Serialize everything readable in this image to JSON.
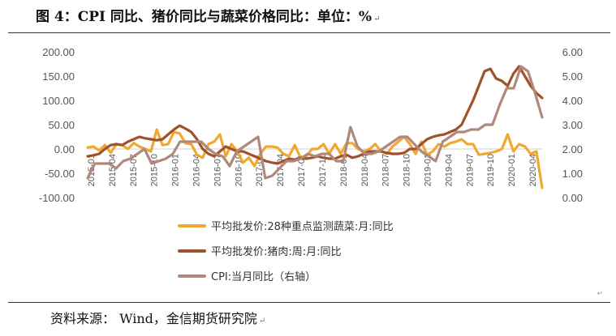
{
  "header": {
    "title": "图 4：CPI 同比、猪价同比与蔬菜价格同比：单位：%",
    "title_mark": "↵"
  },
  "footer": {
    "source": "资料来源：  Wind，金信期货研究院",
    "source_mark": "↵",
    "para_mark": "↵"
  },
  "chart_data": {
    "type": "line",
    "title": "",
    "xlabel": "",
    "ylabel": "",
    "x_tick_labels": [
      "2015-01",
      "2015-04",
      "2015-07",
      "2015-10",
      "2016-01",
      "2016-04",
      "2016-07",
      "2016-10",
      "2017-01",
      "2017-04",
      "2017-07",
      "2017-10",
      "2018-01",
      "2018-04",
      "2018-07",
      "2018-10",
      "2019-01",
      "2019-04",
      "2019-07",
      "2019-10",
      "2020-01",
      "2020-04"
    ],
    "y_left": {
      "ylim": [
        -100,
        200
      ],
      "ticks": [
        "200.00",
        "150.00",
        "100.00",
        "50.00",
        "0.00",
        "-50.00",
        "-100.00"
      ]
    },
    "y_right": {
      "ylim": [
        0,
        6
      ],
      "ticks": [
        "6.00",
        "5.00",
        "4.00",
        "3.00",
        "2.00",
        "1.00",
        "0.00"
      ]
    },
    "legend_position": "bottom",
    "grid": false,
    "series": [
      {
        "name": "平均批发价:28种重点监测蔬菜:月:同比",
        "axis": "left",
        "color": "#F0A830",
        "values": [
          3,
          5,
          -3,
          8,
          -8,
          10,
          8,
          0,
          12,
          5,
          0,
          -5,
          40,
          8,
          10,
          35,
          32,
          12,
          10,
          -12,
          -18,
          10,
          15,
          30,
          -15,
          10,
          -5,
          -28,
          -18,
          -35,
          -10,
          5,
          5,
          3,
          -10,
          -15,
          8,
          -18,
          -15,
          0,
          0,
          10,
          -10,
          10,
          -10,
          12,
          12,
          0,
          -5,
          0,
          10,
          -5,
          -10,
          5,
          15,
          25,
          10,
          -10,
          15,
          -12,
          -5,
          10,
          5,
          12,
          15,
          20,
          10,
          10,
          -12,
          -10,
          -8,
          -5,
          0,
          30,
          -5,
          10,
          5,
          -10,
          -5,
          -80
        ]
      },
      {
        "name": "平均批发价:猪肉:周:月:同比",
        "axis": "left",
        "color": "#A0522D",
        "values": [
          -15,
          -13,
          -10,
          0,
          8,
          10,
          8,
          15,
          20,
          25,
          22,
          20,
          18,
          20,
          30,
          40,
          48,
          42,
          35,
          20,
          0,
          -10,
          -15,
          -5,
          5,
          0,
          -5,
          -5,
          -10,
          -15,
          -20,
          -25,
          -28,
          -30,
          -25,
          -20,
          -22,
          -18,
          -20,
          -18,
          -15,
          -18,
          -20,
          -20,
          -15,
          -12,
          -18,
          -15,
          -10,
          -5,
          -5,
          -5,
          -8,
          -10,
          -10,
          -8,
          0,
          0,
          10,
          20,
          25,
          28,
          30,
          35,
          40,
          50,
          75,
          100,
          130,
          160,
          165,
          145,
          140,
          130,
          155,
          170,
          150,
          130,
          115,
          105
        ]
      },
      {
        "name": "CPI:当月同比（右轴）",
        "axis": "right",
        "color": "#B0897C",
        "values": [
          0.8,
          1.4,
          1.4,
          1.4,
          1.2,
          1.5,
          1.6,
          1.8,
          2.0,
          1.4,
          1.5,
          1.6,
          1.8,
          2.3,
          2.3,
          2.3,
          2.3,
          2.0,
          1.8,
          1.7,
          1.3,
          1.9,
          2.1,
          2.3,
          2.5,
          0.8,
          0.9,
          1.2,
          1.5,
          1.5,
          1.6,
          1.8,
          1.7,
          1.8,
          1.8,
          1.5,
          1.5,
          2.9,
          2.1,
          1.8,
          1.8,
          1.9,
          2.1,
          2.3,
          2.5,
          2.5,
          2.2,
          1.9,
          1.7,
          1.5,
          2.3,
          2.5,
          2.7,
          2.7,
          2.8,
          2.8,
          3.0,
          3.0,
          3.8,
          4.5,
          4.5,
          5.4,
          5.2,
          4.3,
          3.3
        ]
      }
    ]
  }
}
